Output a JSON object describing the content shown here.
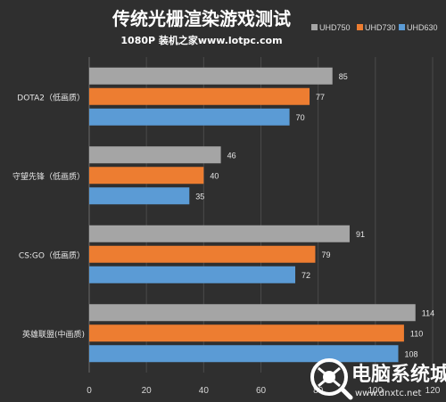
{
  "chart_data": {
    "type": "bar",
    "orientation": "horizontal",
    "title": "传统光栅渲染游戏测试",
    "subtitle": "1080P 装机之家www.lotpc.com",
    "categories": [
      "DOTA2（低画质）",
      "守望先锋（低画质）",
      "CS:GO（低画质）",
      "英雄联盟(中画质)"
    ],
    "series": [
      {
        "name": "UHD750",
        "color": "#a5a5a5",
        "values": [
          85,
          46,
          91,
          114
        ]
      },
      {
        "name": "UHD730",
        "color": "#ed7d31",
        "values": [
          77,
          40,
          79,
          110
        ]
      },
      {
        "name": "UHD630",
        "color": "#5b9bd5",
        "values": [
          70,
          35,
          72,
          108
        ]
      }
    ],
    "xlim": [
      0,
      120
    ],
    "x_ticks": [
      "0",
      "20",
      "40",
      "60",
      "80",
      "100",
      "120"
    ],
    "grid": "vertical",
    "legend_position": "top-right",
    "background": "#2f2f2f",
    "grid_color": "#4a4a4a"
  },
  "watermark": {
    "text": "电脑系统城",
    "url": "www.dnxtc.net",
    "icon": "globe-search-icon"
  }
}
